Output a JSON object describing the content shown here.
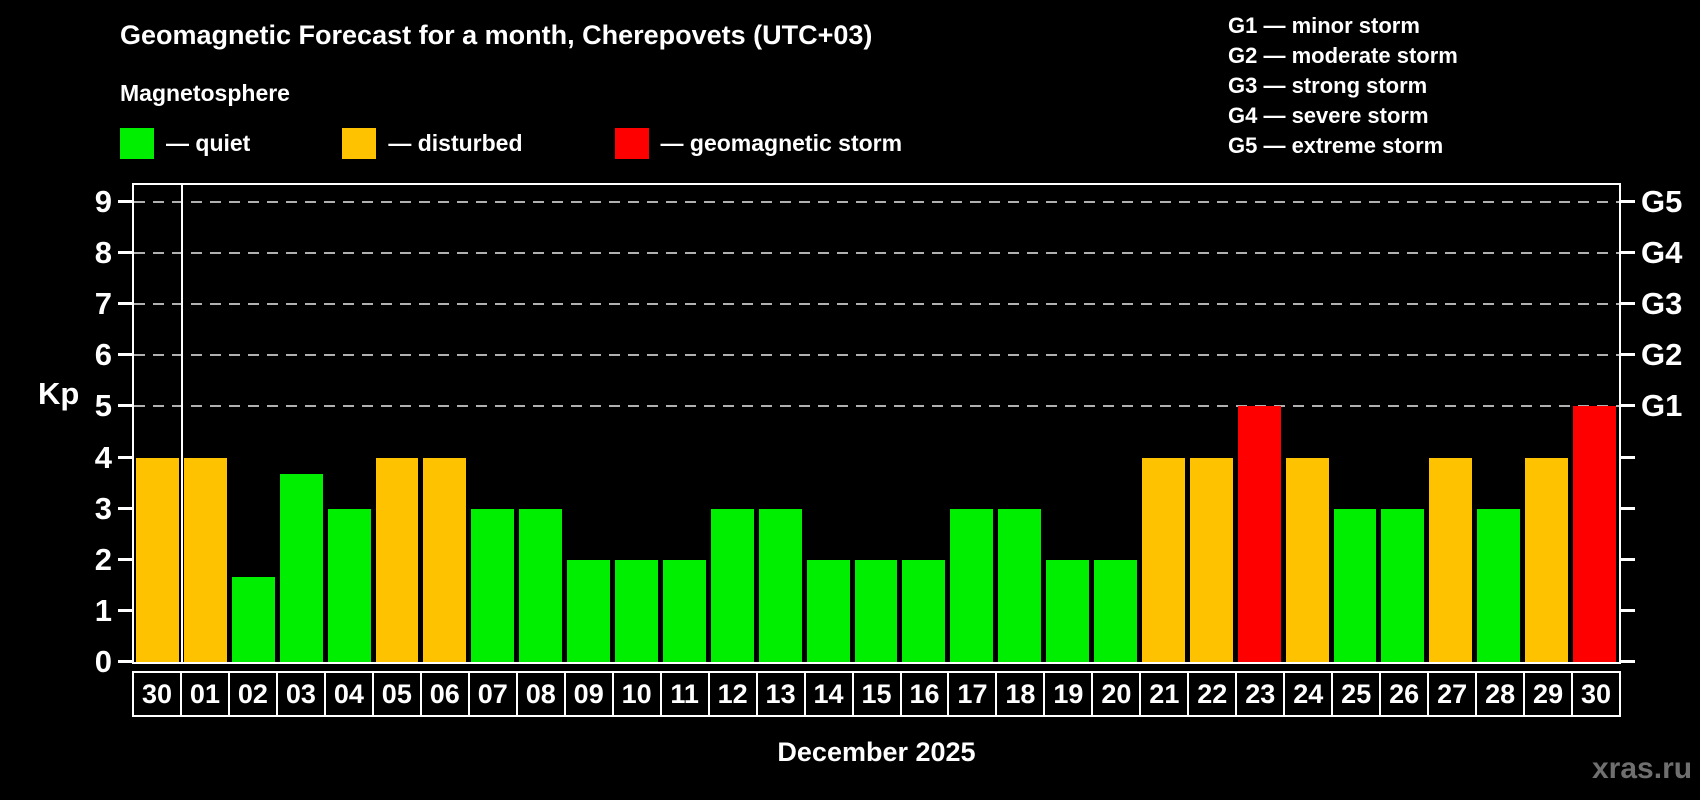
{
  "watermark": "xras.ru",
  "chart_data": {
    "type": "bar",
    "title": "Geomagnetic Forecast for a month, Cherepovets (UTC+03)",
    "subtitle": "Magnetosphere",
    "xlabel": "December 2025",
    "ylabel": "Kp",
    "ylim": [
      0,
      9.33
    ],
    "yticks": [
      0,
      1,
      2,
      3,
      4,
      5,
      6,
      7,
      8,
      9
    ],
    "gridlines_kp": [
      5,
      6,
      7,
      8,
      9
    ],
    "grid_on": true,
    "right_axis": [
      {
        "label": "G5",
        "kp": 9
      },
      {
        "label": "G4",
        "kp": 8
      },
      {
        "label": "G3",
        "kp": 7
      },
      {
        "label": "G2",
        "kp": 6
      },
      {
        "label": "G1",
        "kp": 5
      }
    ],
    "month_boundary_after_index": 0,
    "categories": [
      "30",
      "01",
      "02",
      "03",
      "04",
      "05",
      "06",
      "07",
      "08",
      "09",
      "10",
      "11",
      "12",
      "13",
      "14",
      "15",
      "16",
      "17",
      "18",
      "19",
      "20",
      "21",
      "22",
      "23",
      "24",
      "25",
      "26",
      "27",
      "28",
      "29",
      "30"
    ],
    "values": [
      4,
      4,
      1.67,
      3.67,
      3,
      4,
      4,
      3,
      3,
      2,
      2,
      2,
      3,
      3,
      2,
      2,
      2,
      3,
      3,
      2,
      2,
      4,
      4,
      5,
      4,
      3,
      3,
      4,
      3,
      4,
      5
    ],
    "statuses": [
      "disturbed",
      "disturbed",
      "quiet",
      "quiet",
      "quiet",
      "disturbed",
      "disturbed",
      "quiet",
      "quiet",
      "quiet",
      "quiet",
      "quiet",
      "quiet",
      "quiet",
      "quiet",
      "quiet",
      "quiet",
      "quiet",
      "quiet",
      "quiet",
      "quiet",
      "disturbed",
      "disturbed",
      "storm",
      "disturbed",
      "quiet",
      "quiet",
      "disturbed",
      "quiet",
      "disturbed",
      "storm"
    ],
    "status_colors": {
      "quiet": "#00ee00",
      "disturbed": "#ffc200",
      "storm": "#ff0000"
    },
    "legend": [
      {
        "status": "quiet",
        "label": "— quiet"
      },
      {
        "status": "disturbed",
        "label": "— disturbed"
      },
      {
        "status": "storm",
        "label": "— geomagnetic storm"
      }
    ],
    "g_legend": [
      "G1 — minor storm",
      "G2 — moderate storm",
      "G3 — strong storm",
      "G4 — severe storm",
      "G5 — extreme storm"
    ],
    "grid_color": "#b0b0b0",
    "axis_color": "#ffffff",
    "background_color": "#000000"
  }
}
